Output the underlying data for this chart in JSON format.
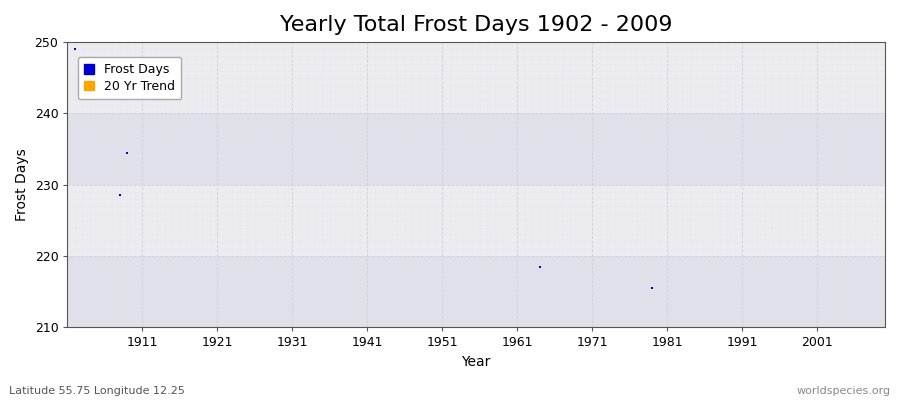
{
  "title": "Yearly Total Frost Days 1902 - 2009",
  "xlabel": "Year",
  "ylabel": "Frost Days",
  "xlim": [
    1901,
    2010
  ],
  "ylim": [
    210,
    250
  ],
  "yticks": [
    210,
    220,
    230,
    240,
    250
  ],
  "xticks": [
    1911,
    1921,
    1931,
    1941,
    1951,
    1961,
    1971,
    1981,
    1991,
    2001
  ],
  "xticklabels": [
    "1911",
    "1921",
    "1931",
    "1941",
    "1951",
    "1961",
    "1971",
    "1981",
    "1991",
    "2001"
  ],
  "frost_days_xy": [
    [
      1902,
      249.0
    ],
    [
      1908,
      228.5
    ],
    [
      1909,
      234.5
    ],
    [
      1964,
      218.5
    ],
    [
      1979,
      215.5
    ]
  ],
  "point_color": "#0000cc",
  "point_size": 2,
  "background_color": "#ffffff",
  "plot_bg_color_light": "#ebebf0",
  "plot_bg_color_dark": "#e0e0ea",
  "grid_major_color": "#d0d0d8",
  "grid_minor_color": "#e0e0e8",
  "legend_frost_color": "#0000cc",
  "legend_trend_color": "#ffa500",
  "footer_left": "Latitude 55.75 Longitude 12.25",
  "footer_right": "worldspecies.org",
  "title_fontsize": 16,
  "axis_label_fontsize": 10,
  "tick_fontsize": 9,
  "footer_fontsize": 8,
  "legend_fontsize": 9
}
